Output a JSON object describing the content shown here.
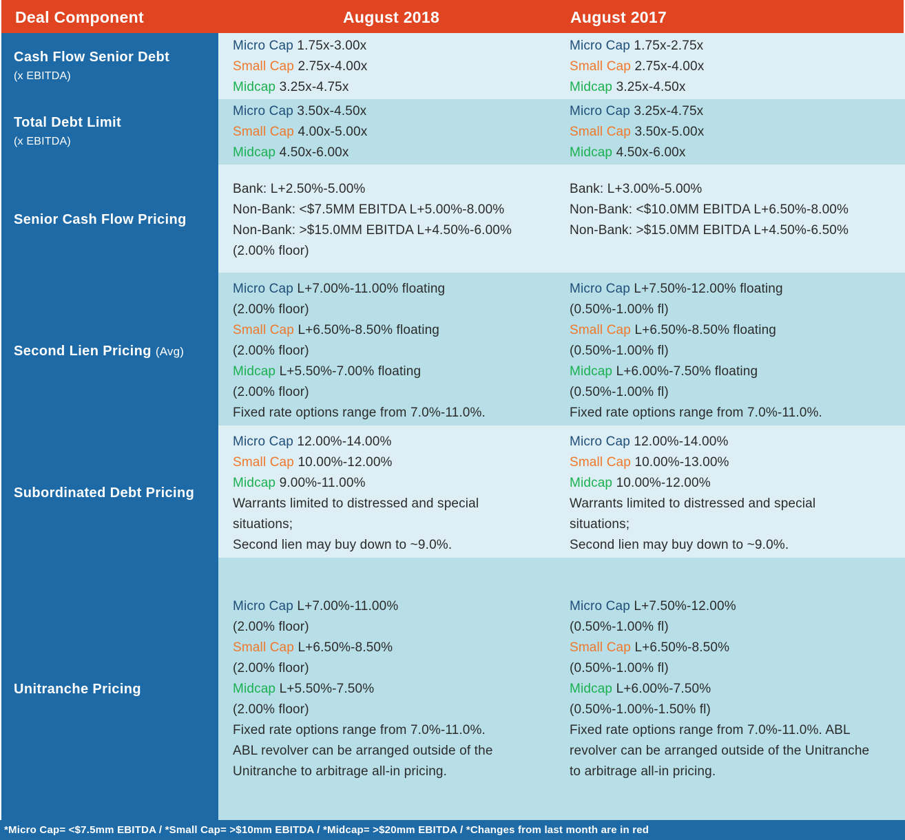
{
  "header": {
    "col0": "Deal Component",
    "col1": "August 2018",
    "col2": "August  2017"
  },
  "labels": {
    "micro": "Micro Cap",
    "small": "Small Cap",
    "mid": "Midcap"
  },
  "rows": [
    {
      "title": "Cash Flow Senior Debt",
      "subtitle": "(x EBITDA)",
      "aug2018": {
        "micro": "1.75x-3.00x",
        "small": "2.75x-4.00x",
        "mid": "3.25x-4.75x"
      },
      "aug2017": {
        "micro": "1.75x-2.75x",
        "small": "2.75x-4.00x",
        "mid": "3.25x-4.50x"
      }
    },
    {
      "title": "Total Debt Limit",
      "subtitle": "(x EBITDA)",
      "aug2018": {
        "micro": "3.50x-4.50x",
        "small": "4.00x-5.00x",
        "mid": "4.50x-6.00x"
      },
      "aug2017": {
        "micro": "3.25x-4.75x",
        "small": "3.50x-5.00x",
        "mid": "4.50x-6.00x"
      }
    },
    {
      "title": "Senior Cash Flow Pricing",
      "aug2018": {
        "lines": [
          "Bank: L+2.50%-5.00%",
          "Non-Bank: <$7.5MM EBITDA L+5.00%-8.00%",
          "Non-Bank: >$15.0MM EBITDA L+4.50%-6.00%",
          "(2.00% floor)"
        ]
      },
      "aug2017": {
        "lines": [
          "Bank: L+3.00%-5.00%",
          "Non-Bank: <$10.0MM EBITDA L+6.50%-8.00%",
          "Non-Bank: >$15.0MM EBITDA L+4.50%-6.50%"
        ]
      }
    },
    {
      "title": "Second Lien Pricing",
      "title_suffix": "(Avg)",
      "aug2018": {
        "micro": "L+7.00%-11.00% floating",
        "micro_note": "(2.00% floor)",
        "small": "L+6.50%-8.50% floating",
        "small_note": "(2.00% floor)",
        "mid": "L+5.50%-7.00% floating",
        "mid_note": "(2.00% floor)",
        "extra": [
          "Fixed rate options range from 7.0%-11.0%."
        ]
      },
      "aug2017": {
        "micro": "L+7.50%-12.00% floating",
        "micro_note": "(0.50%-1.00% fl)",
        "small": "L+6.50%-8.50% floating",
        "small_note": "(0.50%-1.00% fl)",
        "mid": "L+6.00%-7.50% floating",
        "mid_note": "(0.50%-1.00% fl)",
        "extra": [
          "Fixed rate options range from 7.0%-11.0%."
        ]
      }
    },
    {
      "title": "Subordinated Debt Pricing",
      "aug2018": {
        "micro": "12.00%-14.00%",
        "small": "10.00%-12.00%",
        "mid": "9.00%-11.00%",
        "extra": [
          "Warrants limited to distressed and special",
          "situations;",
          "Second lien may buy down to ~9.0%."
        ]
      },
      "aug2017": {
        "micro": "12.00%-14.00%",
        "small": "10.00%-13.00%",
        "mid": "10.00%-12.00%",
        "extra": [
          "Warrants limited to distressed and special",
          "situations;",
          "Second lien may buy down to ~9.0%."
        ]
      }
    },
    {
      "title": "Unitranche Pricing",
      "aug2018": {
        "micro": "L+7.00%-11.00%",
        "micro_note": "(2.00% floor)",
        "small": "L+6.50%-8.50%",
        "small_note": "(2.00% floor)",
        "mid": "L+5.50%-7.50%",
        "mid_note": "(2.00% floor)",
        "extra": [
          "Fixed rate options range from 7.0%-11.0%.",
          "ABL revolver can be arranged outside of the",
          "Unitranche to arbitrage all-in pricing."
        ]
      },
      "aug2017": {
        "micro": "L+7.50%-12.00%",
        "micro_note": "(0.50%-1.00% fl)",
        "small": "L+6.50%-8.50%",
        "small_note": "(0.50%-1.00% fl)",
        "mid": "L+6.00%-7.50%",
        "mid_note": "(0.50%-1.00%-1.50% fl)",
        "extra": [
          "Fixed rate options range from 7.0%-11.0%. ABL",
          "revolver can be arranged outside of the Unitranche",
          "to arbitrage all-in pricing."
        ]
      }
    }
  ],
  "footer": "*Micro Cap= <$7.5mm EBITDA / *Small Cap= >$10mm EBITDA / *Midcap= >$20mm EBITDA / *Changes from last month are in red",
  "colors": {
    "header": "#e04420",
    "left_column": "#1e6aa6",
    "row_light": "#ddeff5",
    "row_dark": "#b8dfe7",
    "micro_cap": "#1f4e79",
    "small_cap": "#f0782c",
    "midcap": "#1ab050"
  }
}
